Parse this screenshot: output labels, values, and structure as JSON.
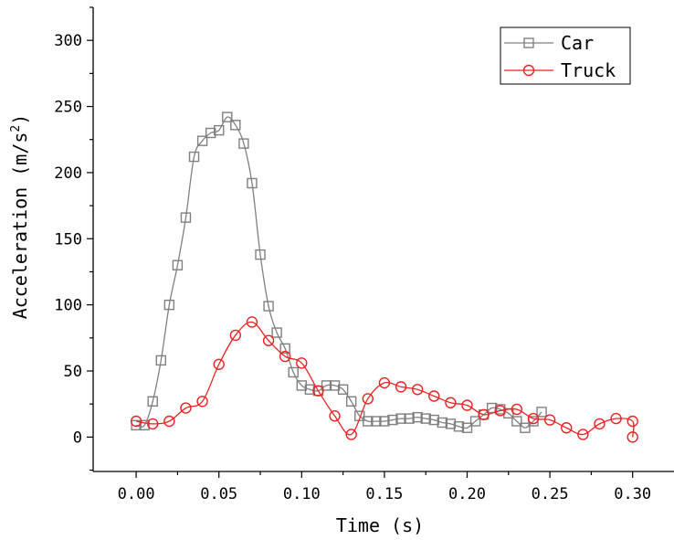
{
  "chart_data": {
    "type": "line",
    "title": "",
    "xlabel": "Time (s)",
    "ylabel_main": "Acceleration (m/s",
    "ylabel_sup": "2",
    "ylabel_close": ")",
    "xlim": [
      -0.026,
      0.325
    ],
    "ylim": [
      -26,
      325
    ],
    "xticks": [
      0.0,
      0.05,
      0.1,
      0.15,
      0.2,
      0.25,
      0.3
    ],
    "xtick_labels": [
      "0.00",
      "0.05",
      "0.10",
      "0.15",
      "0.20",
      "0.25",
      "0.30"
    ],
    "yticks": [
      0,
      50,
      100,
      150,
      200,
      250,
      300
    ],
    "ytick_labels": [
      "0",
      "50",
      "100",
      "150",
      "200",
      "250",
      "300"
    ],
    "legend_position": "top-right",
    "series": [
      {
        "name": "Car",
        "color": "#808080",
        "marker": "square",
        "x": [
          0.0,
          0.005,
          0.01,
          0.015,
          0.02,
          0.025,
          0.03,
          0.035,
          0.04,
          0.045,
          0.05,
          0.055,
          0.06,
          0.065,
          0.07,
          0.075,
          0.08,
          0.085,
          0.09,
          0.095,
          0.1,
          0.105,
          0.11,
          0.115,
          0.12,
          0.125,
          0.13,
          0.135,
          0.14,
          0.145,
          0.15,
          0.155,
          0.16,
          0.165,
          0.17,
          0.175,
          0.18,
          0.185,
          0.19,
          0.195,
          0.2,
          0.205,
          0.21,
          0.215,
          0.22,
          0.225,
          0.23,
          0.235,
          0.24,
          0.245
        ],
        "y": [
          9,
          9,
          27,
          58,
          100,
          130,
          166,
          212,
          224,
          230,
          232,
          242,
          236,
          222,
          192,
          138,
          99,
          79,
          67,
          49,
          39,
          36,
          35,
          39,
          39,
          36,
          27,
          16,
          12,
          12,
          12,
          13,
          14,
          14,
          15,
          14,
          13,
          11,
          10,
          8,
          7,
          12,
          17,
          22,
          21,
          18,
          12,
          7,
          12,
          19
        ]
      },
      {
        "name": "Truck",
        "color": "#ee2222",
        "marker": "circle",
        "x": [
          0.0,
          0.01,
          0.02,
          0.03,
          0.04,
          0.05,
          0.06,
          0.07,
          0.08,
          0.09,
          0.1,
          0.11,
          0.12,
          0.13,
          0.14,
          0.15,
          0.16,
          0.17,
          0.18,
          0.19,
          0.2,
          0.21,
          0.22,
          0.23,
          0.24,
          0.25,
          0.26,
          0.27,
          0.28,
          0.29,
          0.3,
          0.3
        ],
        "y": [
          12,
          10,
          12,
          22,
          27,
          55,
          77,
          87,
          73,
          61,
          56,
          35,
          16,
          2,
          29,
          41,
          38,
          36,
          31,
          26,
          24,
          17,
          20,
          21,
          14,
          13,
          7,
          2,
          10,
          14,
          12,
          0
        ]
      }
    ]
  }
}
